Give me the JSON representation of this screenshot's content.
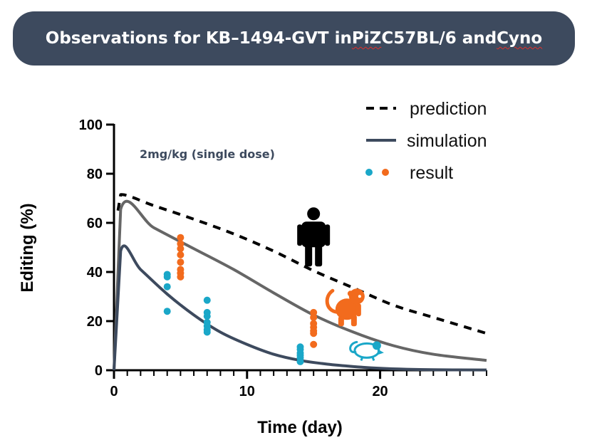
{
  "banner": {
    "title_prefix": "Observations for KB–1494-GVT in ",
    "title_word1": "PiZ",
    "title_middle": " C57BL/6 and ",
    "title_word2": "Cyno"
  },
  "colors": {
    "banner_bg": "#3d4a5e",
    "prediction": "#000000",
    "simulation_upper": "#666666",
    "simulation_lower": "#3d4a5e",
    "mouse_result": "#1aa7c8",
    "cyno_result": "#f26b1d",
    "human_icon": "#000000"
  },
  "chart_data": {
    "type": "line",
    "xlabel": "Time (day)",
    "ylabel": "Editing (%)",
    "xlim": [
      0,
      28
    ],
    "ylim": [
      0,
      100
    ],
    "x_ticks": [
      0,
      10,
      20
    ],
    "y_ticks": [
      0,
      20,
      40,
      60,
      80,
      100
    ],
    "x_minor_step": 1,
    "annotation": "2mg/kg (single dose)",
    "legend": {
      "position": "top-right",
      "entries": [
        {
          "label": "prediction",
          "style": "dashed"
        },
        {
          "label": "simulation",
          "style": "solid"
        },
        {
          "label": "result",
          "style": "dots"
        }
      ]
    },
    "series": [
      {
        "name": "prediction (human)",
        "style": "dashed",
        "color": "#000000",
        "x": [
          0.3,
          0.5,
          3,
          6,
          9,
          12,
          15,
          18,
          21,
          24,
          28
        ],
        "y": [
          65,
          71.5,
          67,
          61.5,
          55.5,
          48.5,
          40.5,
          33.5,
          26.5,
          21.5,
          15
        ]
      },
      {
        "name": "simulation (cyno)",
        "style": "solid",
        "color": "#666666",
        "x": [
          0,
          0.5,
          3,
          6,
          9,
          12,
          15,
          18,
          21,
          24,
          28
        ],
        "y": [
          0,
          65.5,
          58,
          49.5,
          41,
          31.5,
          22.5,
          15.5,
          10,
          6.5,
          4
        ]
      },
      {
        "name": "simulation (mouse)",
        "style": "solid",
        "color": "#3d4a5e",
        "x": [
          0,
          0.5,
          2,
          4,
          6,
          8,
          10,
          12,
          14,
          16,
          18,
          20,
          22,
          24,
          28
        ],
        "y": [
          0,
          48.5,
          41,
          31,
          22.5,
          15.5,
          10.5,
          6.5,
          4,
          2.5,
          1.5,
          0.8,
          0.4,
          0.2,
          0.1
        ]
      },
      {
        "name": "result (mouse)",
        "style": "dots",
        "color": "#1aa7c8",
        "x": [
          4,
          4,
          4,
          4,
          7,
          7,
          7,
          7,
          7,
          7,
          7,
          14,
          14,
          14,
          14,
          14,
          14
        ],
        "y": [
          39,
          38,
          34,
          24,
          28.5,
          23.5,
          22,
          19.5,
          18,
          16.5,
          15.5,
          9.5,
          8.5,
          7,
          6,
          5,
          3.5
        ]
      },
      {
        "name": "result (cyno)",
        "style": "dots",
        "color": "#f26b1d",
        "x": [
          5,
          5,
          5,
          5,
          5,
          5,
          5,
          5,
          15,
          15,
          15,
          15,
          15,
          15,
          15
        ],
        "y": [
          54,
          51.5,
          49.5,
          47,
          44,
          41,
          39.5,
          38,
          23.5,
          21.5,
          19,
          17.5,
          16,
          15,
          10.5
        ]
      }
    ],
    "icons": [
      {
        "name": "human-icon",
        "x": 15,
        "y": 55
      },
      {
        "name": "monkey-icon",
        "x": 17.5,
        "y": 26
      },
      {
        "name": "mouse-icon",
        "x": 19,
        "y": 8
      }
    ]
  }
}
